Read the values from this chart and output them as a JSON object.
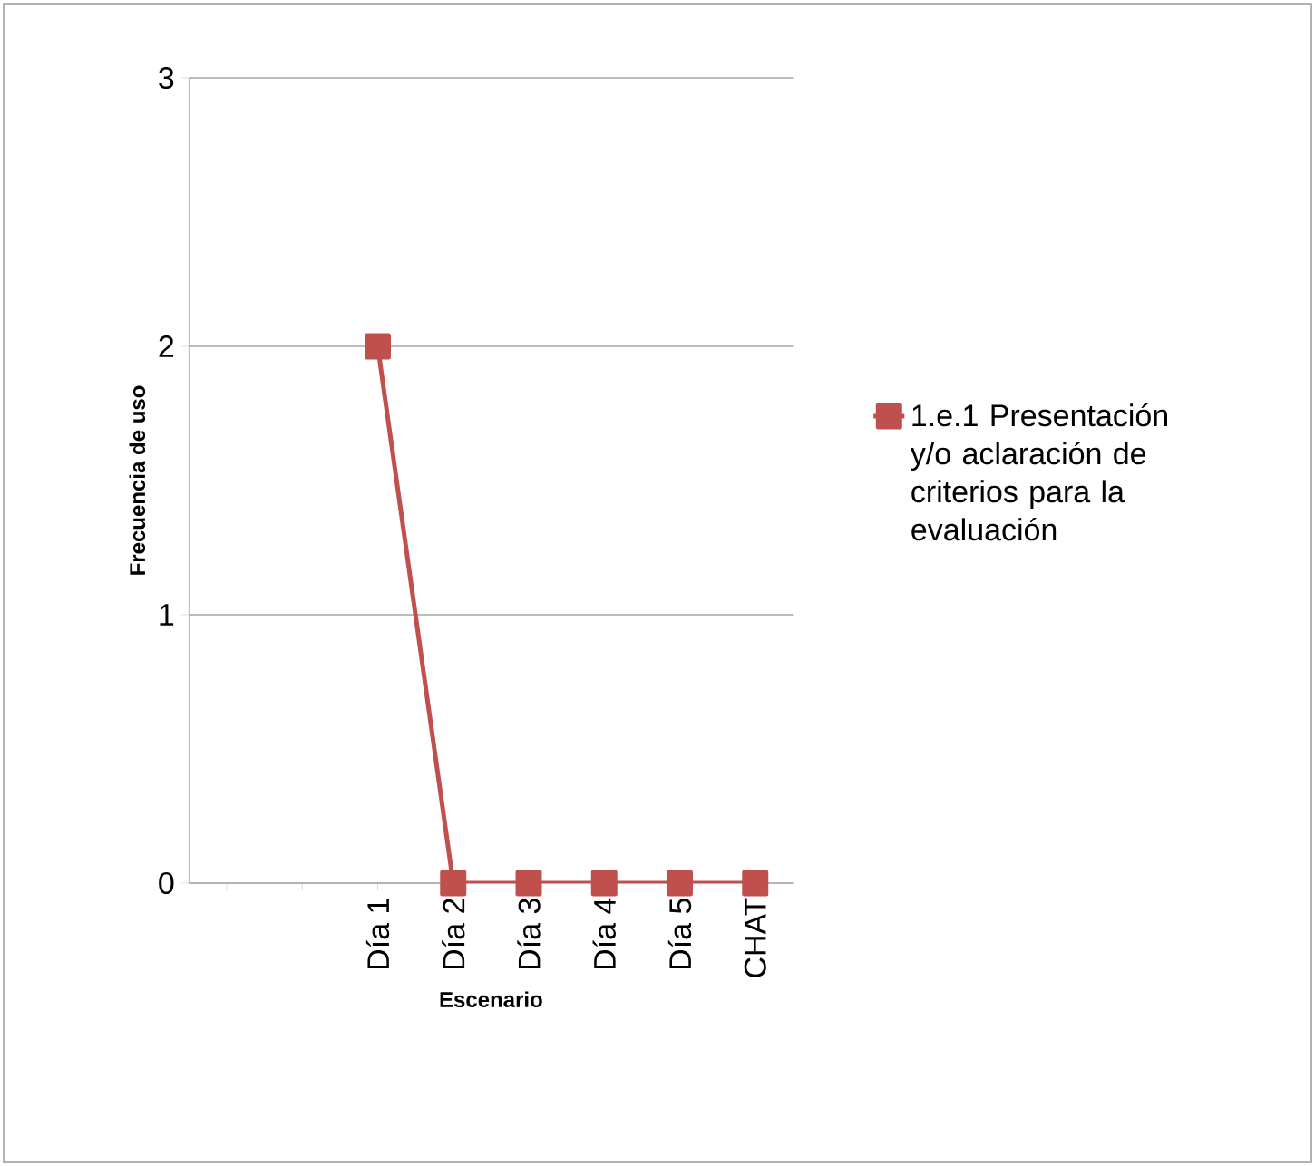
{
  "chart_data": {
    "type": "line",
    "xlabel": "Escenario",
    "ylabel": "Frecuencia de uso",
    "categories": [
      null,
      null,
      "Día 1",
      "Día 2",
      "Día 3",
      "Día 4",
      "Día 5",
      "CHAT"
    ],
    "series": [
      {
        "name": "1.e.1 Presentación y/o aclaración de criterios para la evaluación",
        "color": "#c0504d",
        "values": [
          null,
          null,
          2,
          0,
          0,
          0,
          0,
          0
        ]
      }
    ],
    "ylim": [
      0,
      3
    ],
    "yticks": [
      0,
      1,
      2,
      3
    ],
    "grid": "y",
    "legend": "right",
    "marker": "square",
    "line_style": "solid"
  }
}
